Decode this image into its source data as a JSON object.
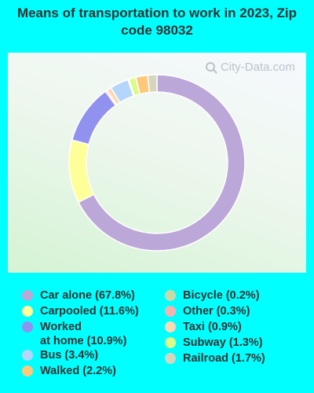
{
  "chart_data": {
    "type": "pie",
    "title": "Means of transportation to work in 2023, Zip code 98032",
    "watermark": "City-Data.com",
    "legend_position": "bottom",
    "slices": [
      {
        "label": "Car alone (67.8%)",
        "name": "Car alone",
        "value": 67.8,
        "color": "#bca7d9"
      },
      {
        "label": "Carpooled (11.6%)",
        "name": "Carpooled",
        "value": 11.6,
        "color": "#ffff99"
      },
      {
        "label": "Worked at home (10.9%)",
        "name": "Worked at home",
        "value": 10.9,
        "color": "#9191f0"
      },
      {
        "label": "Other (0.3%)",
        "name": "Other",
        "value": 0.3,
        "color": "#f4b3ae"
      },
      {
        "label": "Taxi (0.9%)",
        "name": "Taxi",
        "value": 0.9,
        "color": "#fdd8b5"
      },
      {
        "label": "Bus (3.4%)",
        "name": "Bus",
        "value": 3.4,
        "color": "#b3d6fa"
      },
      {
        "label": "Bicycle (0.2%)",
        "name": "Bicycle",
        "value": 0.2,
        "color": "#cbd9a6"
      },
      {
        "label": "Subway (1.3%)",
        "name": "Subway",
        "value": 1.3,
        "color": "#dcfc88"
      },
      {
        "label": "Walked (2.2%)",
        "name": "Walked",
        "value": 2.2,
        "color": "#fdc87a"
      },
      {
        "label": "Railroad (1.7%)",
        "name": "Railroad",
        "value": 1.7,
        "color": "#d6d6c0"
      }
    ],
    "legend": [
      {
        "label_line1": "Car alone (67.8%)",
        "label_line2": "",
        "color": "#bca7d9"
      },
      {
        "label_line1": "Carpooled (11.6%)",
        "label_line2": "",
        "color": "#ffff99"
      },
      {
        "label_line1": "Worked",
        "label_line2": "at home (10.9%)",
        "color": "#9191f0"
      },
      {
        "label_line1": "Bus (3.4%)",
        "label_line2": "",
        "color": "#b3d6fa"
      },
      {
        "label_line1": "Walked (2.2%)",
        "label_line2": "",
        "color": "#fdc87a"
      },
      {
        "label_line1": "Bicycle (0.2%)",
        "label_line2": "",
        "color": "#cbd9a6"
      },
      {
        "label_line1": "Other (0.3%)",
        "label_line2": "",
        "color": "#f4b3ae"
      },
      {
        "label_line1": "Taxi (0.9%)",
        "label_line2": "",
        "color": "#fdd8b5"
      },
      {
        "label_line1": "Subway (1.3%)",
        "label_line2": "",
        "color": "#dcfc88"
      },
      {
        "label_line1": "Railroad (1.7%)",
        "label_line2": "",
        "color": "#d6d6c0"
      }
    ]
  }
}
